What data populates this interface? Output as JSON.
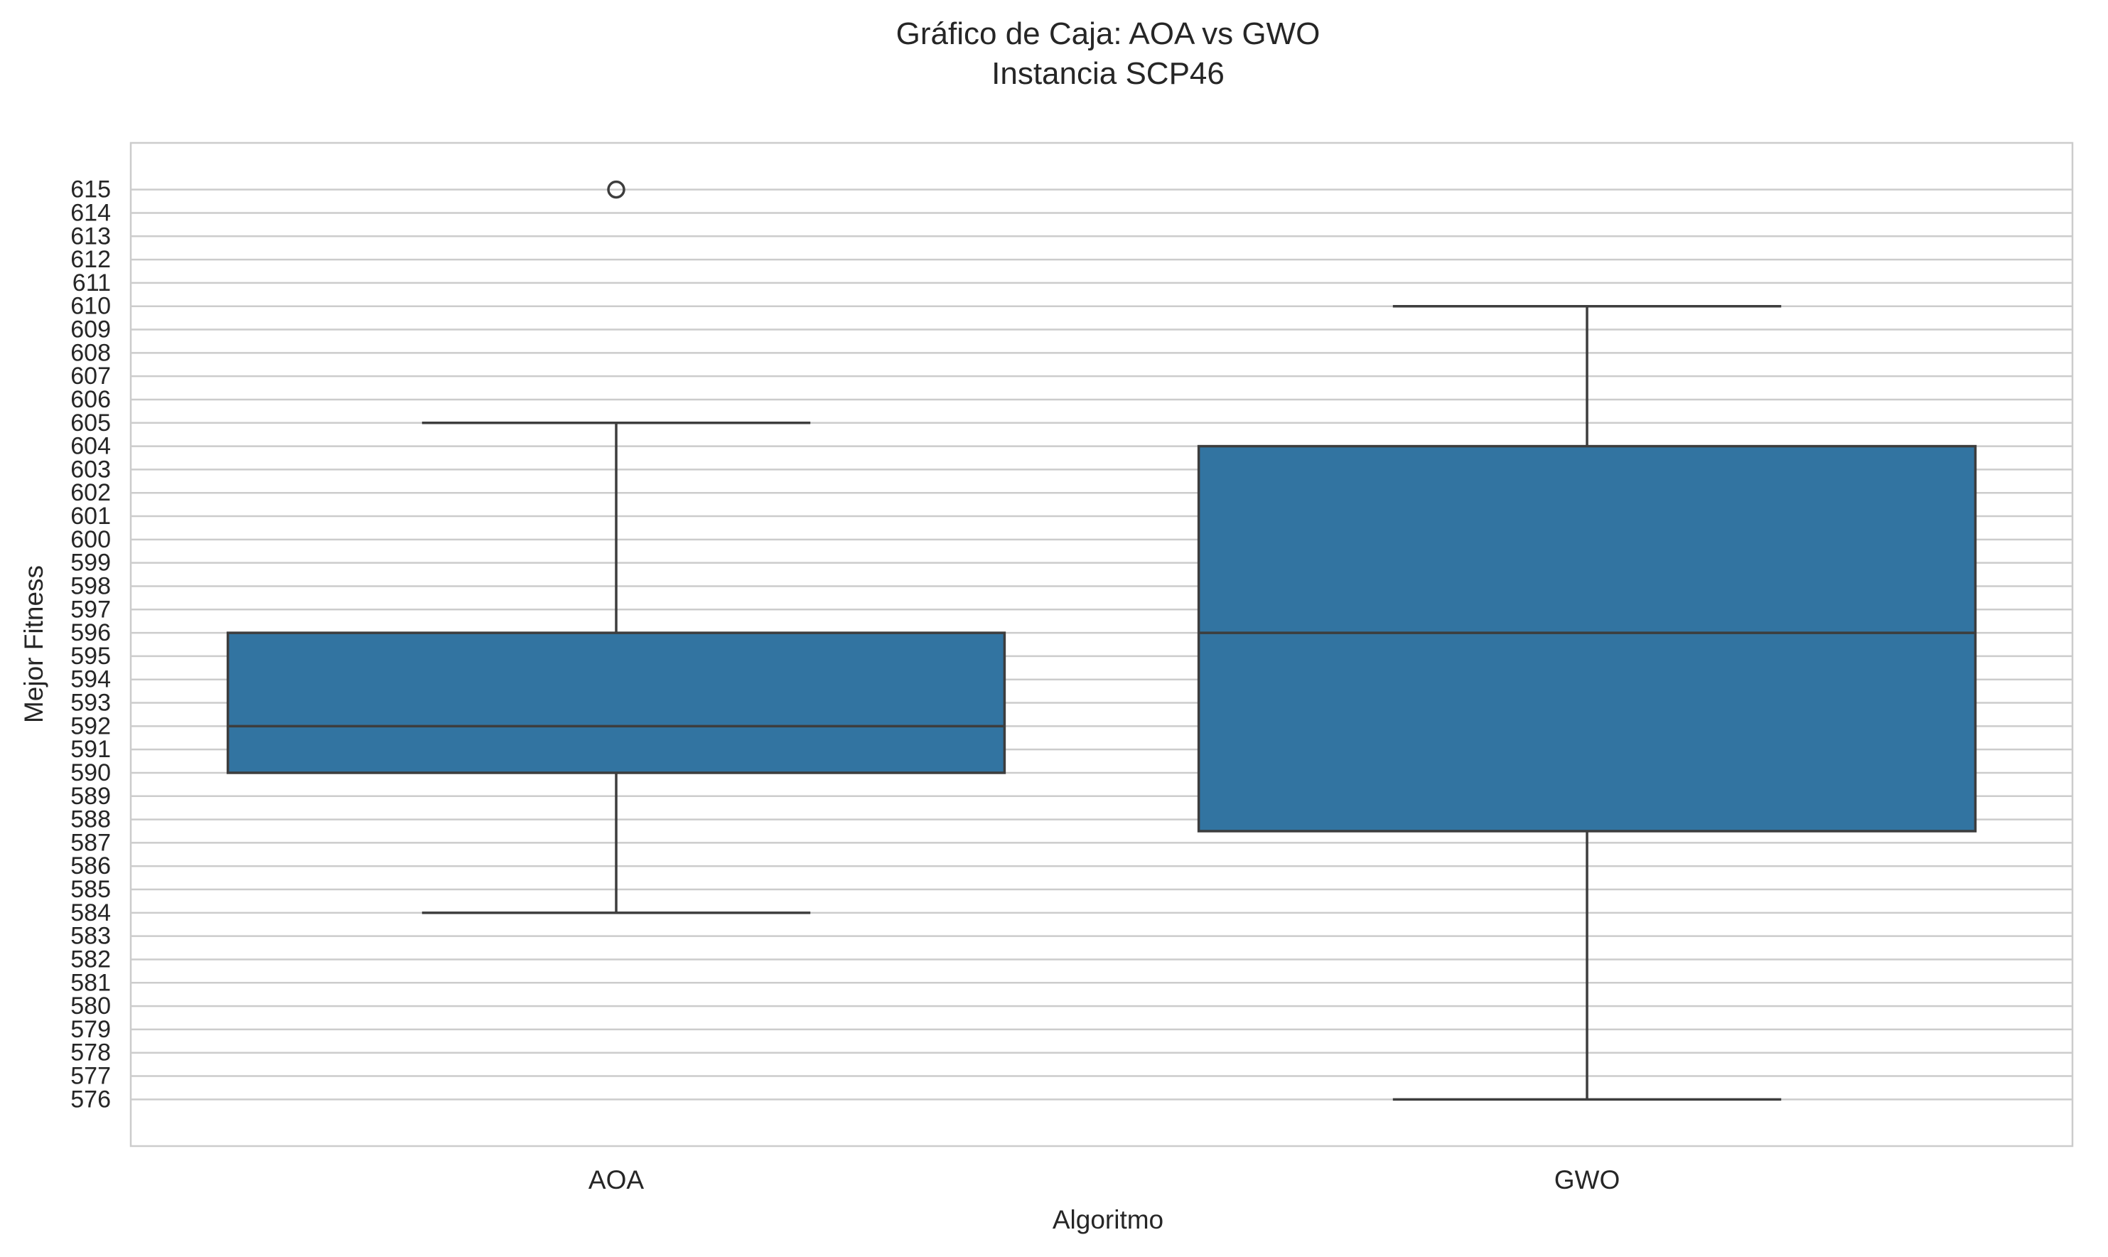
{
  "chart_data": {
    "type": "box",
    "title": "Gráfico de Caja: AOA vs GWO",
    "subtitle": "Instancia SCP46",
    "xlabel": "Algoritmo",
    "ylabel": "Mejor Fitness",
    "ylim": [
      574,
      617
    ],
    "yticks": [
      576,
      577,
      578,
      579,
      580,
      581,
      582,
      583,
      584,
      585,
      586,
      587,
      588,
      589,
      590,
      591,
      592,
      593,
      594,
      595,
      596,
      597,
      598,
      599,
      600,
      601,
      602,
      603,
      604,
      605,
      606,
      607,
      608,
      609,
      610,
      611,
      612,
      613,
      614,
      615
    ],
    "yticklabels": [
      "576",
      "577",
      "578",
      "579",
      "580",
      "581",
      "582",
      "583",
      "584",
      "585",
      "586",
      "587",
      "588",
      "589",
      "590",
      "591",
      "592",
      "593",
      "594",
      "595",
      "596",
      "597",
      "598",
      "599",
      "600",
      "601",
      "602",
      "603",
      "604",
      "605",
      "606",
      "607",
      "608",
      "609",
      "610",
      "611",
      "612",
      "613",
      "614",
      "615"
    ],
    "grid": "horizontal",
    "box_color": "#3274a1",
    "line_color": "#3d3d3d",
    "grid_color": "#cccccc",
    "categories": [
      "AOA",
      "GWO"
    ],
    "boxes": [
      {
        "category": "AOA",
        "whisker_low": 584,
        "q1": 590,
        "median": 592,
        "q3": 596,
        "whisker_high": 605,
        "outliers": [
          615
        ]
      },
      {
        "category": "GWO",
        "whisker_low": 576,
        "q1": 587.5,
        "median": 596,
        "q3": 604,
        "whisker_high": 610,
        "outliers": []
      }
    ]
  }
}
